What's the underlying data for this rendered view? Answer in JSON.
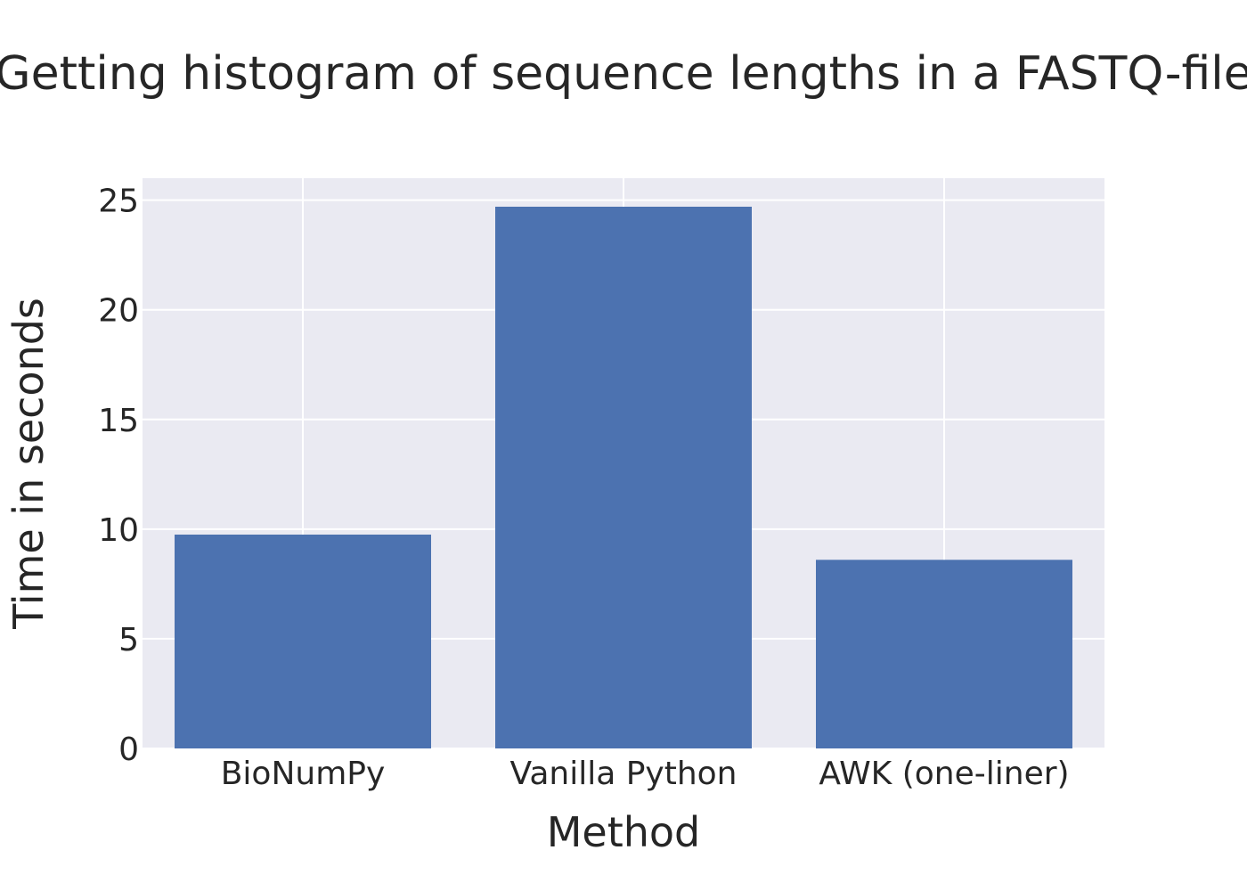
{
  "chart_data": {
    "type": "bar",
    "title": "Getting histogram of sequence lengths in a FASTQ-file",
    "xlabel": "Method",
    "ylabel": "Time in seconds",
    "categories": [
      "BioNumPy",
      "Vanilla Python",
      "AWK (one-liner)"
    ],
    "values": [
      9.75,
      24.7,
      8.6
    ],
    "ylim": [
      0,
      26
    ],
    "yticks": [
      0,
      5,
      10,
      15,
      20,
      25
    ],
    "grid": true,
    "bar_color": "#4c72b0",
    "plot_background": "#eaeaf2",
    "grid_color": "#ffffff"
  }
}
